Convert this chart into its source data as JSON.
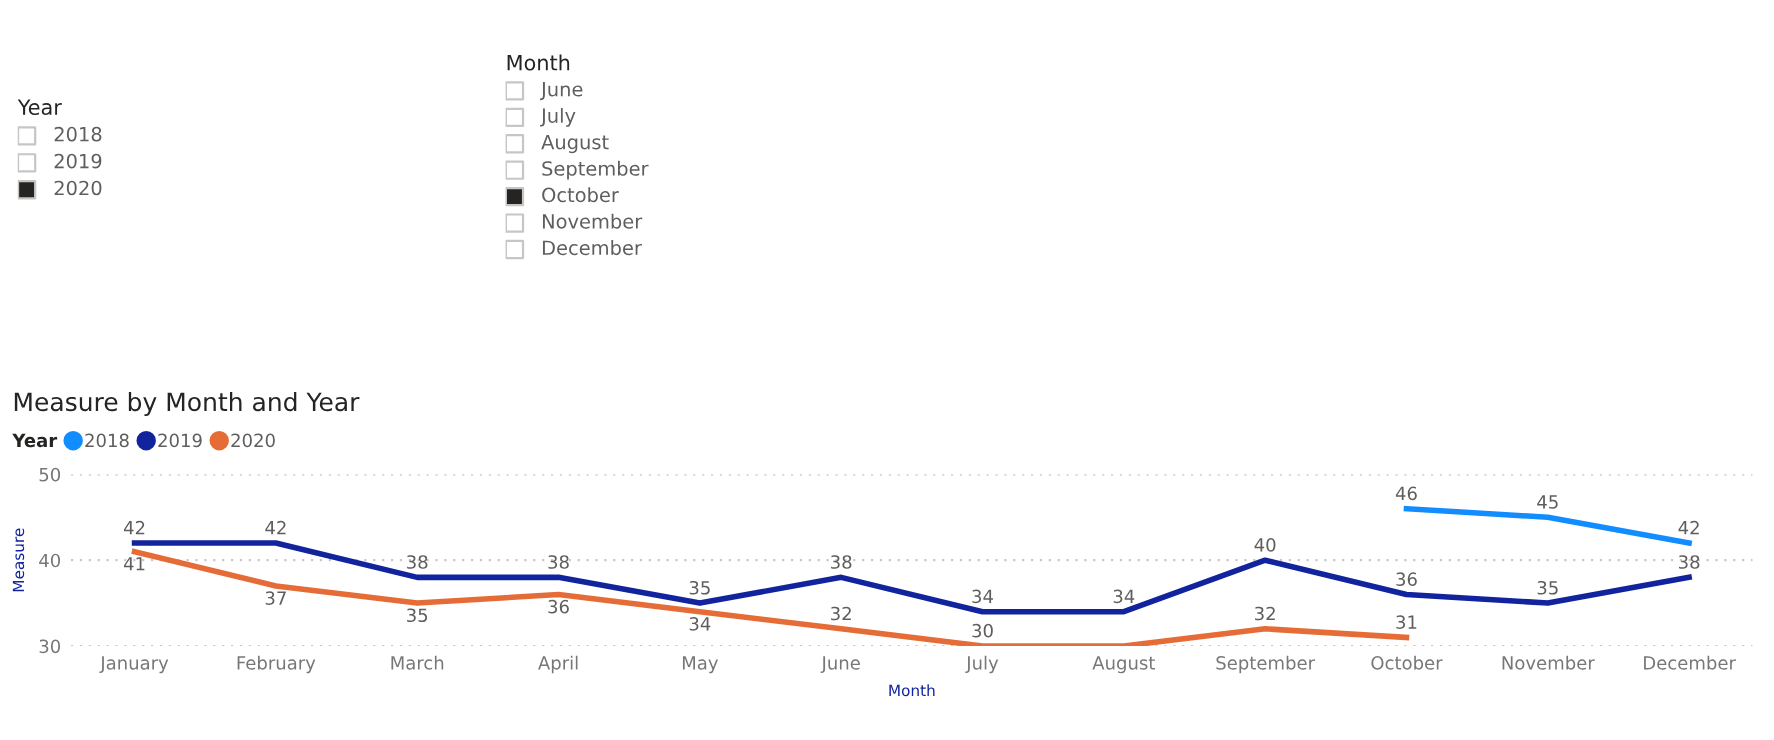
{
  "chart_data": [
    {
      "type": "other",
      "title": "Year",
      "categories": [
        "2018",
        "2019",
        "2020"
      ],
      "colors": [
        "#ffffff",
        "#ffffff",
        "#252423"
      ]
    },
    {
      "type": "other",
      "title": "Month",
      "categories": [
        "June",
        "July",
        "August",
        "September",
        "October",
        "November",
        "December"
      ],
      "colors": [
        "#ffffff",
        "#ffffff",
        "#ffffff",
        "#ffffff",
        "#252423",
        "#ffffff",
        "#ffffff"
      ]
    },
    {
      "type": "line",
      "title": "Measure by Month and Year",
      "xlabel": "Month",
      "ylabel": "Measure",
      "legend_title": "Year",
      "legend": "top left",
      "grid": "y",
      "marker": "none",
      "line_style": "solid",
      "categories": [
        "January",
        "February",
        "March",
        "April",
        "May",
        "June",
        "July",
        "August",
        "September",
        "October",
        "November",
        "December"
      ],
      "ylim": [
        30,
        50
      ],
      "yticks": [
        30,
        40,
        50
      ],
      "series": [
        {
          "name": "2018",
          "color": "#118dff",
          "values": [
            null,
            null,
            null,
            null,
            null,
            null,
            null,
            null,
            null,
            46,
            45,
            42
          ],
          "value_labels": [
            null,
            null,
            null,
            null,
            null,
            null,
            null,
            null,
            null,
            "46",
            "45",
            "42"
          ]
        },
        {
          "name": "2019",
          "color": "#12239e",
          "values": [
            42,
            42,
            38,
            38,
            35,
            38,
            34,
            34,
            40,
            36,
            35,
            38
          ],
          "value_labels": [
            "42",
            "42",
            "38",
            "38",
            "35",
            "38",
            "34",
            "34",
            "40",
            "36",
            "35",
            "38"
          ]
        },
        {
          "name": "2020",
          "color": "#e66c37",
          "values": [
            41,
            37,
            35,
            36,
            34,
            32,
            30,
            30,
            32,
            31,
            null,
            null
          ],
          "value_labels": [
            "41",
            "37",
            "35",
            "36",
            "34",
            "32",
            "30",
            null,
            "32",
            "31",
            null,
            null
          ]
        }
      ]
    }
  ]
}
